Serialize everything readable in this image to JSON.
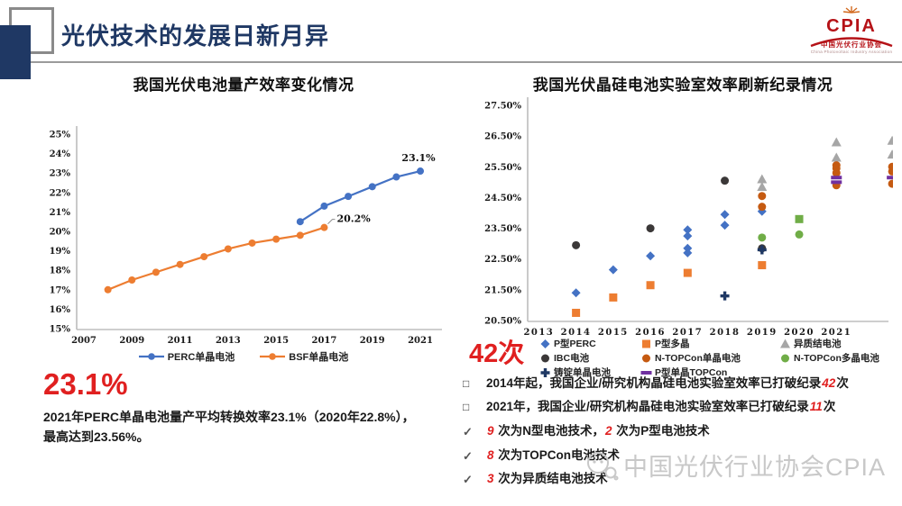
{
  "header": {
    "title": "光伏技术的发展日新月异",
    "logo": {
      "name": "CPIA",
      "org_cn": "中国光伏行业协会",
      "org_en": "China Photovoltaic Industry Association",
      "color": "#b51217"
    }
  },
  "left_panel": {
    "big_stat": "23.1%",
    "desc_line1": "2021年PERC单晶电池量产平均转换效率23.1%（2020年22.8%），",
    "desc_line2": "最高达到23.56%。"
  },
  "right_panel": {
    "big_stat": "42次",
    "bullets": [
      {
        "marker": "□",
        "segments": [
          {
            "t": "2014年起，我国企业/研究机构晶硅电池实验室效率已打破纪录"
          },
          {
            "t": "42",
            "red": true
          },
          {
            "t": "次"
          }
        ]
      },
      {
        "marker": "□",
        "segments": [
          {
            "t": "2021年，我国企业/研究机构晶硅电池实验室效率已打破纪录"
          },
          {
            "t": "11",
            "red": true
          },
          {
            "t": "次"
          }
        ]
      },
      {
        "marker": "✓",
        "segments": [
          {
            "t": "9 ",
            "red": true
          },
          {
            "t": "次为N型电池技术，"
          },
          {
            "t": "2 ",
            "red": true
          },
          {
            "t": "次为P型电池技术"
          }
        ]
      },
      {
        "marker": "✓",
        "segments": [
          {
            "t": "8 ",
            "red": true
          },
          {
            "t": "次为TOPCon电池技术"
          }
        ]
      },
      {
        "marker": "✓",
        "segments": [
          {
            "t": "3 ",
            "red": true
          },
          {
            "t": "次为异质结电池技术"
          }
        ]
      }
    ]
  },
  "watermark": {
    "text": "中国光伏行业协会CPIA"
  },
  "chart_data": [
    {
      "type": "line",
      "title": "我国光伏电池量产效率变化情况",
      "xlabel": "",
      "ylabel": "",
      "xlim": [
        2006.7,
        2021.9
      ],
      "ylim": [
        15,
        25
      ],
      "grid": false,
      "legend_position": "bottom",
      "x_ticks": [
        {
          "v": 2007,
          "label": "2007"
        },
        {
          "v": 2009,
          "label": "2009"
        },
        {
          "v": 2011,
          "label": "2011"
        },
        {
          "v": 2013,
          "label": "2013"
        },
        {
          "v": 2015,
          "label": "2015"
        },
        {
          "v": 2017,
          "label": "2017"
        },
        {
          "v": 2019,
          "label": "2019"
        },
        {
          "v": 2021,
          "label": "2021"
        }
      ],
      "y_ticks": [
        {
          "v": 25,
          "label": "25%"
        },
        {
          "v": 24,
          "label": "24%"
        },
        {
          "v": 23,
          "label": "23%"
        },
        {
          "v": 22,
          "label": "22%"
        },
        {
          "v": 21,
          "label": "21%"
        },
        {
          "v": 20,
          "label": "20%"
        },
        {
          "v": 19,
          "label": "19%"
        },
        {
          "v": 18,
          "label": "18%"
        },
        {
          "v": 17,
          "label": "17%"
        },
        {
          "v": 16,
          "label": "16%"
        },
        {
          "v": 15,
          "label": "15%"
        }
      ],
      "series": [
        {
          "name": "PERC单晶电池",
          "color": "#4472C4",
          "points": [
            [
              2016,
              20.5
            ],
            [
              2017,
              21.3
            ],
            [
              2018,
              21.8
            ],
            [
              2019,
              22.3
            ],
            [
              2020,
              22.8
            ],
            [
              2021,
              23.1
            ]
          ],
          "end_label": "23.1%",
          "label_side": "top"
        },
        {
          "name": "BSF单晶电池",
          "color": "#ED7D31",
          "points": [
            [
              2008,
              17.0
            ],
            [
              2009,
              17.5
            ],
            [
              2010,
              17.9
            ],
            [
              2011,
              18.3
            ],
            [
              2012,
              18.7
            ],
            [
              2013,
              19.1
            ],
            [
              2014,
              19.4
            ],
            [
              2015,
              19.6
            ],
            [
              2016,
              19.8
            ],
            [
              2017,
              20.2
            ]
          ],
          "end_label": "20.2%",
          "label_side": "right"
        }
      ]
    },
    {
      "type": "scatter",
      "title": "我国光伏晶硅电池实验室效率刷新纪录情况",
      "xlabel": "",
      "ylabel": "",
      "xlim": [
        2012.7,
        2022.4
      ],
      "ylim": [
        20.5,
        27.5
      ],
      "grid": false,
      "legend_position": "bottom",
      "x_ticks": [
        {
          "v": 2013,
          "label": "2013"
        },
        {
          "v": 2014,
          "label": "2014"
        },
        {
          "v": 2015,
          "label": "2015"
        },
        {
          "v": 2016,
          "label": "2016"
        },
        {
          "v": 2017,
          "label": "2017"
        },
        {
          "v": 2018,
          "label": "2018"
        },
        {
          "v": 2019,
          "label": "2019"
        },
        {
          "v": 2020,
          "label": "2020"
        },
        {
          "v": 2021,
          "label": "2021"
        }
      ],
      "y_ticks": [
        {
          "v": 27.5,
          "label": "27.50%"
        },
        {
          "v": 26.5,
          "label": "26.50%"
        },
        {
          "v": 25.5,
          "label": "25.50%"
        },
        {
          "v": 24.5,
          "label": "24.50%"
        },
        {
          "v": 23.5,
          "label": "23.50%"
        },
        {
          "v": 22.5,
          "label": "22.50%"
        },
        {
          "v": 21.5,
          "label": "21.50%"
        },
        {
          "v": 20.5,
          "label": "20.50%"
        }
      ],
      "series": [
        {
          "name": "P型PERC",
          "color": "#4472C4",
          "marker": "diamond",
          "points": [
            [
              2014,
              21.4
            ],
            [
              2015,
              22.15
            ],
            [
              2016,
              22.6
            ],
            [
              2017,
              23.45
            ],
            [
              2017,
              23.25
            ],
            [
              2017,
              22.85
            ],
            [
              2017,
              22.7
            ],
            [
              2018,
              23.95
            ],
            [
              2018,
              23.6
            ],
            [
              2019,
              24.05
            ]
          ]
        },
        {
          "name": "P型多晶",
          "color": "#ED7D31",
          "marker": "square",
          "points": [
            [
              2014,
              20.75
            ],
            [
              2015,
              21.25
            ],
            [
              2016,
              21.65
            ],
            [
              2017,
              22.05
            ],
            [
              2019,
              22.3
            ]
          ]
        },
        {
          "name": "异质结电池",
          "color": "#A6A6A6",
          "marker": "triangle",
          "points": [
            [
              2019,
              25.1
            ],
            [
              2019,
              24.85
            ],
            [
              2021,
              26.3
            ],
            [
              2021,
              25.8
            ],
            [
              2022.5,
              26.35
            ],
            [
              2022.5,
              25.9
            ]
          ]
        },
        {
          "name": "IBC电池",
          "color": "#3B3838",
          "marker": "circle",
          "points": [
            [
              2014,
              22.95
            ],
            [
              2016,
              23.5
            ],
            [
              2018,
              25.05
            ],
            [
              2019,
              22.85
            ]
          ]
        },
        {
          "name": "N-TOPCon单晶电池",
          "color": "#C55A11",
          "marker": "circle",
          "points": [
            [
              2019,
              24.55
            ],
            [
              2019,
              24.2
            ],
            [
              2021,
              25.55
            ],
            [
              2021,
              25.45
            ],
            [
              2021,
              25.3
            ],
            [
              2021,
              24.9
            ],
            [
              2022.5,
              25.5
            ],
            [
              2022.5,
              25.35
            ],
            [
              2022.5,
              24.95
            ]
          ]
        },
        {
          "name": "N-TOPCon多晶电池",
          "color": "#70AD47",
          "marker": "circle",
          "points": [
            [
              2019,
              23.2
            ],
            [
              2020,
              23.3
            ],
            [
              2020,
              23.8,
              "square"
            ]
          ]
        },
        {
          "name": "铸锭单晶电池",
          "color": "#1F3864",
          "marker": "cross",
          "points": [
            [
              2018,
              21.3
            ],
            [
              2019,
              22.8
            ]
          ]
        },
        {
          "name": "P型单晶TOPCon",
          "color": "#7030A0",
          "marker": "dash",
          "points": [
            [
              2021,
              25.15
            ],
            [
              2021,
              25.0
            ],
            [
              2022.5,
              25.15
            ]
          ]
        }
      ]
    }
  ]
}
